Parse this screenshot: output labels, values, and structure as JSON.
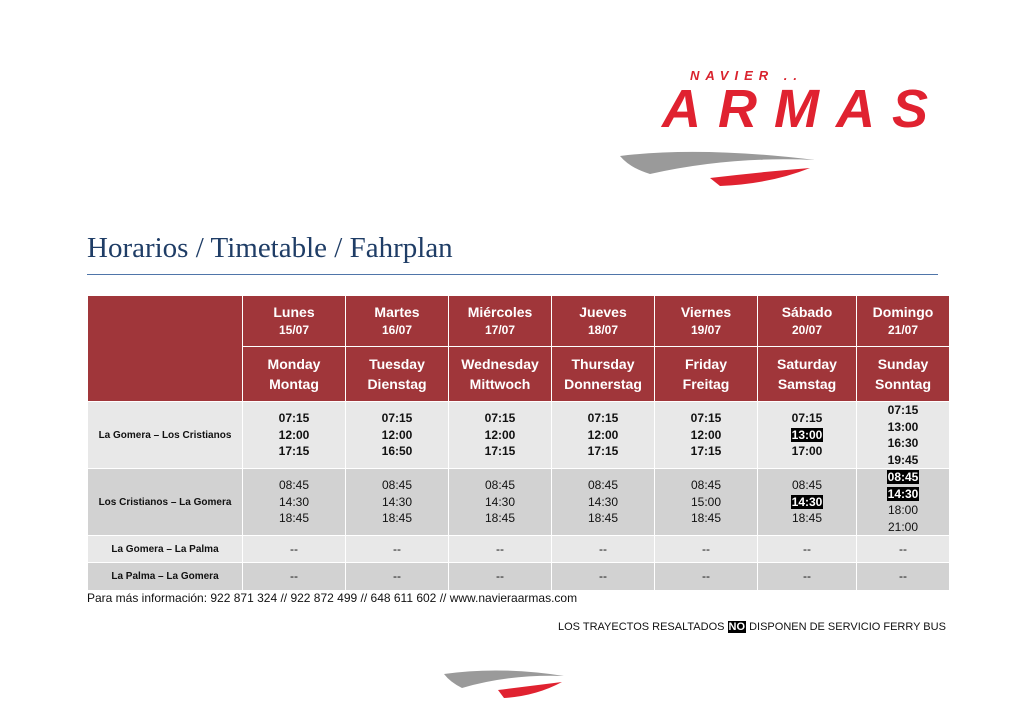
{
  "logo": {
    "top": "NAVIER ..",
    "main": "ARMAS"
  },
  "title": "Horarios / Timetable / Fahrplan",
  "days": [
    {
      "es": "Lunes",
      "date": "15/07",
      "en": "Monday",
      "de": "Montag"
    },
    {
      "es": "Martes",
      "date": "16/07",
      "en": "Tuesday",
      "de": "Dienstag"
    },
    {
      "es": "Miércoles",
      "date": "17/07",
      "en": "Wednesday",
      "de": "Mittwoch"
    },
    {
      "es": "Jueves",
      "date": "18/07",
      "en": "Thursday",
      "de": "Donnerstag"
    },
    {
      "es": "Viernes",
      "date": "19/07",
      "en": "Friday",
      "de": "Freitag"
    },
    {
      "es": "Sábado",
      "date": "20/07",
      "en": "Saturday",
      "de": "Samstag"
    },
    {
      "es": "Domingo",
      "date": "21/07",
      "en": "Sunday",
      "de": "Sonntag"
    }
  ],
  "routes": [
    {
      "name": "La Gomera – Los Cristianos",
      "bold": true,
      "bg": "bg1",
      "times": [
        [
          "07:15",
          "12:00",
          "17:15"
        ],
        [
          "07:15",
          "12:00",
          "16:50"
        ],
        [
          "07:15",
          "12:00",
          "17:15"
        ],
        [
          "07:15",
          "12:00",
          "17:15"
        ],
        [
          "07:15",
          "12:00",
          "17:15"
        ],
        [
          "07:15",
          "13:00",
          "17:00"
        ],
        [
          "07:15",
          "13:00",
          "16:30",
          "19:45"
        ]
      ],
      "highlight": [
        [],
        [],
        [],
        [],
        [],
        [
          1
        ],
        []
      ]
    },
    {
      "name": "Los Cristianos – La Gomera",
      "bold": false,
      "bg": "bg2",
      "times": [
        [
          "08:45",
          "14:30",
          "18:45"
        ],
        [
          "08:45",
          "14:30",
          "18:45"
        ],
        [
          "08:45",
          "14:30",
          "18:45"
        ],
        [
          "08:45",
          "14:30",
          "18:45"
        ],
        [
          "08:45",
          "15:00",
          "18:45"
        ],
        [
          "08:45",
          "14:30",
          "18:45"
        ],
        [
          "08:45",
          "14:30",
          "18:00",
          "21:00"
        ]
      ],
      "highlight": [
        [],
        [],
        [],
        [],
        [],
        [
          1
        ],
        [
          0,
          1
        ]
      ]
    },
    {
      "name": "La Gomera – La Palma",
      "bold": false,
      "bg": "bg1",
      "times": [
        [
          "--"
        ],
        [
          "--"
        ],
        [
          "--"
        ],
        [
          "--"
        ],
        [
          "--"
        ],
        [
          "--"
        ],
        [
          "--"
        ]
      ],
      "highlight": [
        [],
        [],
        [],
        [],
        [],
        [],
        []
      ]
    },
    {
      "name": "La Palma – La Gomera",
      "bold": false,
      "bg": "bg2",
      "times": [
        [
          "--"
        ],
        [
          "--"
        ],
        [
          "--"
        ],
        [
          "--"
        ],
        [
          "--"
        ],
        [
          "--"
        ],
        [
          "--"
        ]
      ],
      "highlight": [
        [],
        [],
        [],
        [],
        [],
        [],
        []
      ]
    }
  ],
  "info": "Para más información: 922 871 324 // 922 872 499 //  648 611 602 // www.navieraarmas.com",
  "note": {
    "before": "LOS  TRAYECTOS RESALTADOS ",
    "highlight": "NO",
    "after": " DISPONEN DE SERVICIO FERRY BUS"
  },
  "colors": {
    "header": "#a0363a",
    "title": "#1f3d66",
    "logo": "#e02230",
    "rowLight": "#e8e8e8",
    "rowDark": "#d2d2d2"
  }
}
